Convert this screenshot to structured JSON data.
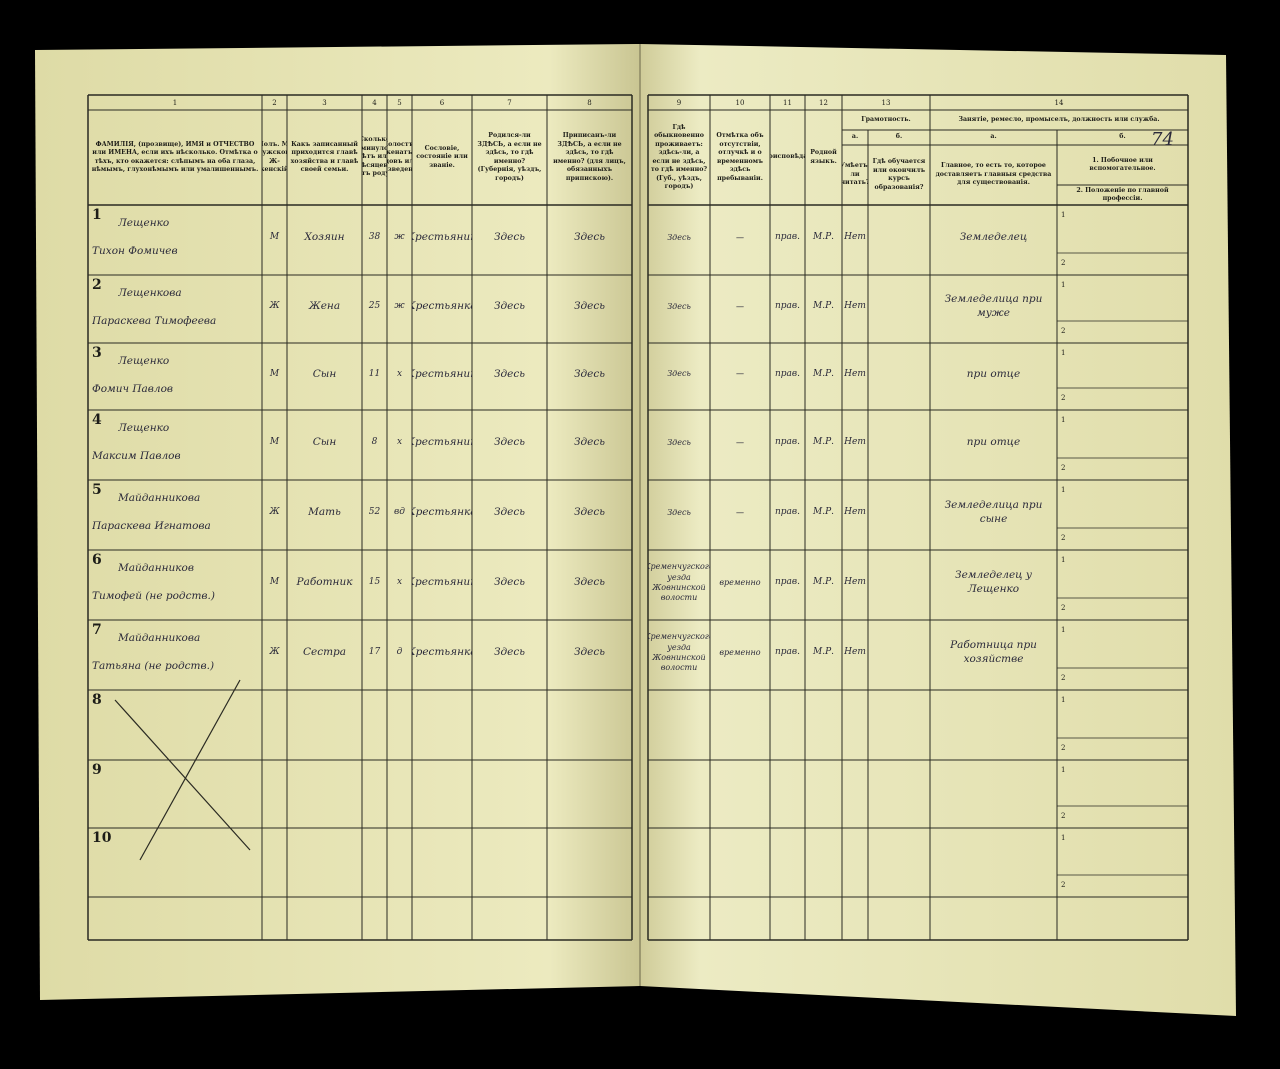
{
  "header": {
    "page_number": "74",
    "columns": [
      {
        "number": "1",
        "title": "ФАМИЛІЯ, (прозвище), ИМЯ и ОТЧЕСТВО или ИМЕНА, если ихъ нѣсколько. Отмѣтка о тѣхъ, кто окажется: слѣпымъ на оба глаза, нѣмымъ, глухонѣмымъ или умалишеннымъ."
      },
      {
        "number": "2",
        "title": "Полъ. М-мужской. Ж-женскій."
      },
      {
        "number": "3",
        "title": "Какъ записанный приходится главѣ хозяйства и главѣ своей семьи."
      },
      {
        "number": "4",
        "title": "Сколько минуло лѣтъ или мѣсяцевъ отъ роду."
      },
      {
        "number": "5",
        "title": "Холостъ, женатъ, вдовъ или разведенъ."
      },
      {
        "number": "6",
        "title": "Сословіе, состояніе или званіе."
      },
      {
        "number": "7",
        "title": "Родился-ли ЗДѢСЬ, а если не здѣсь, то гдѣ именно? (Губернія, уѣздъ, городъ)"
      },
      {
        "number": "8",
        "title": "Приписанъ-ли ЗДѢСЬ, а если не здѣсь, то гдѣ именно? (для лицъ, обязанныхъ припискою)."
      },
      {
        "number": "9",
        "title": "Гдѣ обыкновенно проживаетъ: здѣсь-ли, а если не здѣсь, то гдѣ именно? (Губ., уѣздъ, городъ)"
      },
      {
        "number": "10",
        "title": "Отмѣтка объ отсутствіи, отлучкѣ и о временномъ здѣсь пребываніи."
      },
      {
        "number": "11",
        "title": "Вѣроисповѣданіе."
      },
      {
        "number": "12",
        "title": "Родной языкъ."
      },
      {
        "number": "13",
        "title": "Грамотность.",
        "sub": [
          {
            "letter": "а.",
            "title": "Умѣетъ-ли читать?"
          },
          {
            "letter": "б.",
            "title": "Гдѣ обучается или окончилъ курсъ образованія?"
          }
        ]
      },
      {
        "number": "14",
        "title": "Занятіе, ремесло, промыселъ, должность или служба.",
        "sub": [
          {
            "letter": "а.",
            "title": "Главное, то есть то, которое доставляетъ главныя средства для существованія."
          },
          {
            "letter": "б.",
            "lines": [
              "1. Побочное или вспомогательное.",
              "2. Положеніе по главной профессіи."
            ]
          }
        ]
      }
    ]
  },
  "rows": [
    {
      "number": "1",
      "surname": "Лещенко",
      "given": "Тихон Фомичев",
      "sex": "М",
      "relation": "Хозяин",
      "age": "38",
      "marital": "ж",
      "estate": "Крестьянин",
      "birthplace": "Здесь",
      "registered": "Здесь",
      "residence": "Здесь",
      "absence": "—",
      "religion": "прав.",
      "language": "М.Р.",
      "literacy": "Нет",
      "occupation": "Земледелец",
      "lines": [
        "1",
        "2"
      ]
    },
    {
      "number": "2",
      "surname": "Лещенкова",
      "given": "Параскева Тимофеева",
      "sex": "Ж",
      "relation": "Жена",
      "age": "25",
      "marital": "ж",
      "estate": "Крестьянка",
      "birthplace": "Здесь",
      "registered": "Здесь",
      "residence": "Здесь",
      "absence": "—",
      "religion": "прав.",
      "language": "М.Р.",
      "literacy": "Нет",
      "occupation": "Земледелица при муже",
      "lines": [
        "1",
        "2"
      ]
    },
    {
      "number": "3",
      "surname": "Лещенко",
      "given": "Фомич Павлов",
      "sex": "М",
      "relation": "Сын",
      "age": "11",
      "marital": "х",
      "estate": "Крестьянин",
      "birthplace": "Здесь",
      "registered": "Здесь",
      "residence": "Здесь",
      "absence": "—",
      "religion": "прав.",
      "language": "М.Р.",
      "literacy": "Нет",
      "occupation": "при отце",
      "lines": [
        "1",
        "2"
      ]
    },
    {
      "number": "4",
      "surname": "Лещенко",
      "given": "Максим Павлов",
      "sex": "М",
      "relation": "Сын",
      "age": "8",
      "marital": "х",
      "estate": "Крестьянин",
      "birthplace": "Здесь",
      "registered": "Здесь",
      "residence": "Здесь",
      "absence": "—",
      "religion": "прав.",
      "language": "М.Р.",
      "literacy": "Нет",
      "occupation": "при отце",
      "lines": [
        "1",
        "2"
      ]
    },
    {
      "number": "5",
      "surname": "Майданникова",
      "given": "Параскева Игнатова",
      "sex": "Ж",
      "relation": "Мать",
      "age": "52",
      "marital": "вд",
      "estate": "Крестьянка",
      "birthplace": "Здесь",
      "registered": "Здесь",
      "residence": "Здесь",
      "absence": "—",
      "religion": "прав.",
      "language": "М.Р.",
      "literacy": "Нет",
      "occupation": "Земледелица при сыне",
      "lines": [
        "1",
        "2"
      ]
    },
    {
      "number": "6",
      "surname": "Майданников",
      "given": "Тимофей (не родств.)",
      "sex": "М",
      "relation": "Работник",
      "age": "15",
      "marital": "х",
      "estate": "Крестьянин",
      "birthplace": "Здесь",
      "registered": "Здесь",
      "residence": "Кременчугского уезда Жовнинской волости",
      "absence": "временно",
      "religion": "прав.",
      "language": "М.Р.",
      "literacy": "Нет",
      "occupation": "Земледелец у Лещенко",
      "lines": [
        "1",
        "2"
      ]
    },
    {
      "number": "7",
      "surname": "Майданникова",
      "given": "Татьяна (не родств.)",
      "sex": "Ж",
      "relation": "Сестра",
      "age": "17",
      "marital": "д",
      "estate": "Крестьянка",
      "birthplace": "Здесь",
      "registered": "Здесь",
      "residence": "Кременчугского уезда Жовнинской волости",
      "absence": "временно",
      "religion": "прав.",
      "language": "М.Р.",
      "literacy": "Нет",
      "occupation": "Работница при хозяйстве",
      "lines": [
        "1",
        "2"
      ]
    },
    {
      "number": "8",
      "lines": [
        "1",
        "2"
      ]
    },
    {
      "number": "9",
      "lines": [
        "1",
        "2"
      ]
    },
    {
      "number": "10",
      "lines": [
        "1",
        "2"
      ]
    }
  ]
}
